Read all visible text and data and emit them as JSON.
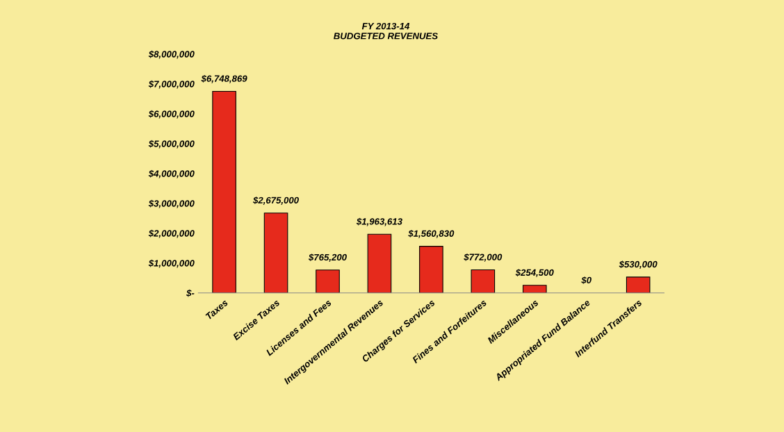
{
  "chart_data": {
    "type": "bar",
    "title": "FY 2013-14\nBUDGETED REVENUES",
    "categories": [
      "Taxes",
      "Excise Taxes",
      "Licenses and Fees",
      "Intergovernmental Revenues",
      "Charges for Services",
      "Fines and Forfeitures",
      "Miscellaneous",
      "Appropriated Fund Balance",
      "Interfund Transfers"
    ],
    "values": [
      6748869,
      2675000,
      765200,
      1963613,
      1560830,
      772000,
      254500,
      0,
      530000
    ],
    "value_labels": [
      "$6,748,869",
      "$2,675,000",
      "$765,200",
      "$1,963,613",
      "$1,560,830",
      "$772,000",
      "$254,500",
      "$0",
      "$530,000"
    ],
    "color": "#e62a1c",
    "ylim": [
      0,
      8000000
    ],
    "yticks": [
      {
        "value": 0,
        "label": "$-"
      },
      {
        "value": 1000000,
        "label": "$1,000,000"
      },
      {
        "value": 2000000,
        "label": "$2,000,000"
      },
      {
        "value": 3000000,
        "label": "$3,000,000"
      },
      {
        "value": 4000000,
        "label": "$4,000,000"
      },
      {
        "value": 5000000,
        "label": "$5,000,000"
      },
      {
        "value": 6000000,
        "label": "$6,000,000"
      },
      {
        "value": 7000000,
        "label": "$7,000,000"
      },
      {
        "value": 8000000,
        "label": "$8,000,000"
      }
    ],
    "grid": false
  }
}
